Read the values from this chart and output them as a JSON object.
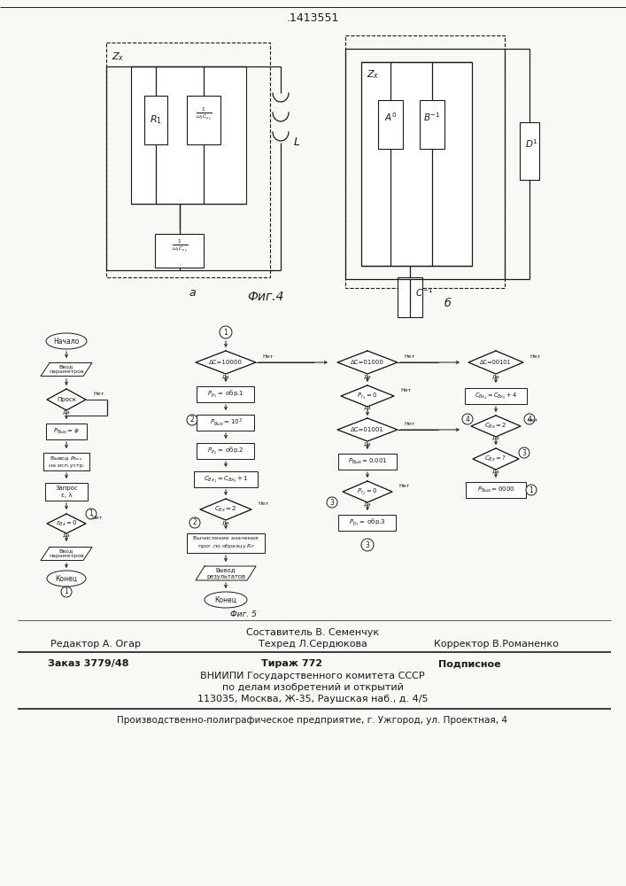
{
  "patent_number": ".1413551",
  "fig4_label": "Фиг.4",
  "fig5_label": "Фиг. 5",
  "footer_sestavitel": "Составитель В. Семенчук",
  "footer_redaktor": "Редактор А. Огар",
  "footer_tehred": "Техред Л.Сердюкова",
  "footer_korrektor": "Корректор В.Романенко",
  "footer_zakaz": "Заказ 3779/48",
  "footer_tirazh": "Тираж 772",
  "footer_podpisnoe": "Подписное",
  "footer_vniipи": "ВНИИПИ Государственного комитета СССР",
  "footer_po_delam": "по делам изобретений и открытий",
  "footer_adres": "113035, Москва, Ж-35, Раушская наб., д. 4/5",
  "footer_proizv": "Производственно-полиграфическое предприятие, г. Ужгород, ул. Проектная, 4",
  "bg_color": "#f8f8f4"
}
